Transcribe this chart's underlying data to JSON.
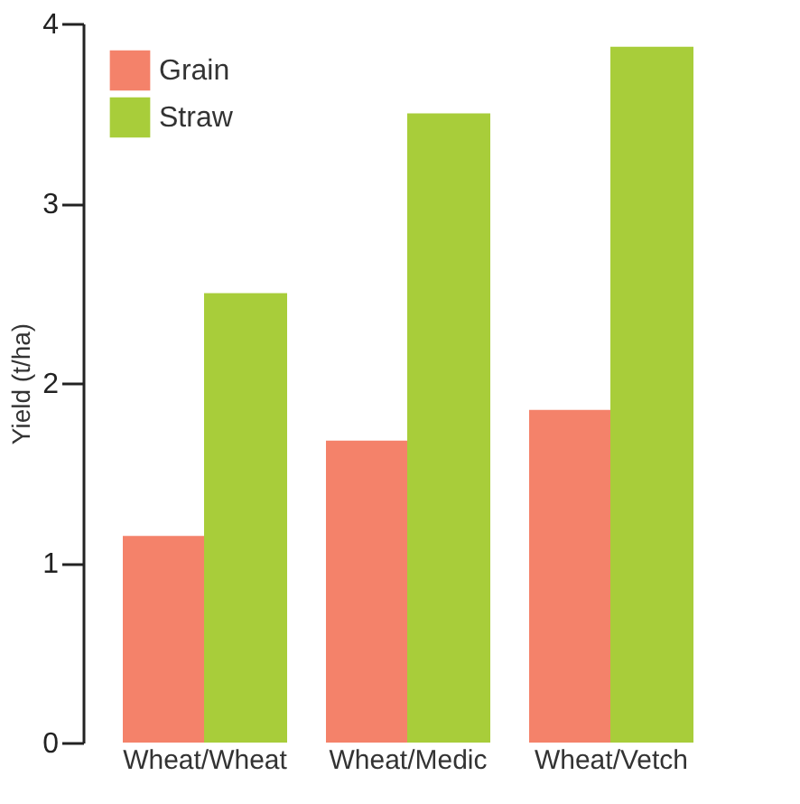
{
  "chart_data": {
    "type": "bar",
    "ylabel": "Yield (t/ha)",
    "categories": [
      "Wheat/Wheat",
      "Wheat/Medic",
      "Wheat/Vetch"
    ],
    "series": [
      {
        "name": "Grain",
        "color": "#f4826a",
        "values": [
          1.15,
          1.68,
          1.85
        ]
      },
      {
        "name": "Straw",
        "color": "#a8cd3a",
        "values": [
          2.5,
          3.5,
          3.87
        ]
      }
    ],
    "ylim": [
      0,
      4
    ],
    "yticks": [
      0,
      1,
      2,
      3,
      4
    ],
    "grid": false,
    "legend": "top left"
  }
}
